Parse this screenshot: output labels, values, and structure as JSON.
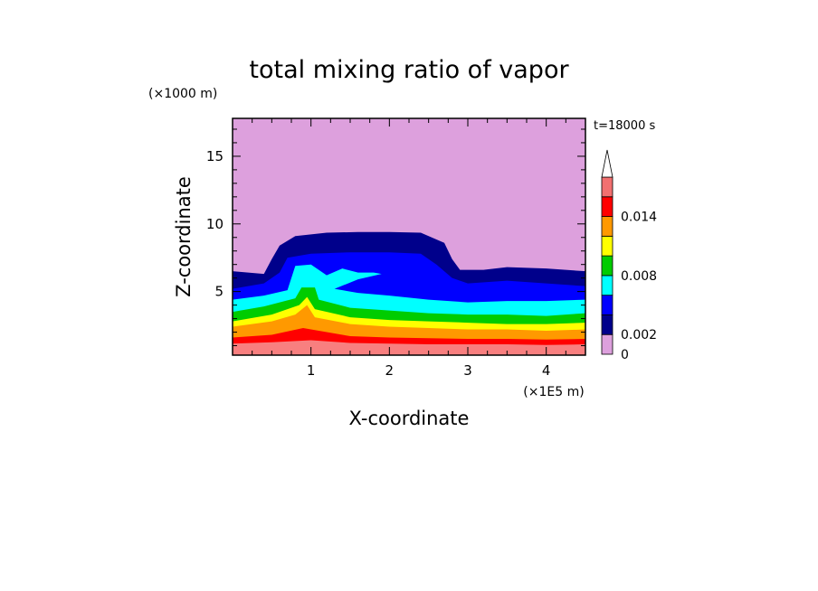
{
  "chart_data": {
    "type": "heatmap",
    "title": "total mixing ratio of vapor",
    "xlabel": "X-coordinate",
    "ylabel": "Z-coordinate",
    "x_unit": "(×1E5 m)",
    "y_unit": "(×1000 m)",
    "time_label": "t=18000 s",
    "xlim": [
      0,
      4.5
    ],
    "ylim": [
      0.3,
      17.8
    ],
    "x_ticks": [
      1,
      2,
      3,
      4
    ],
    "y_ticks": [
      5,
      10,
      15
    ],
    "colorbar": {
      "levels": [
        0,
        0.002,
        0.004,
        0.006,
        0.008,
        0.01,
        0.012,
        0.014,
        0.016
      ],
      "tick_labels": [
        {
          "value": 0,
          "label": "0"
        },
        {
          "value": 0.002,
          "label": "0.002"
        },
        {
          "value": 0.008,
          "label": "0.008"
        },
        {
          "value": 0.014,
          "label": "0.014"
        }
      ],
      "colors": [
        "#dda0dd",
        "#00008b",
        "#0000ff",
        "#00ffff",
        "#00cc00",
        "#ffff00",
        "#ff9900",
        "#ff0000",
        "#f27070",
        "#f8b8b8"
      ],
      "extend": "max"
    },
    "bands": [
      {
        "level": 0.014,
        "color": "#f87f7f",
        "top": [
          [
            0,
            1.15
          ],
          [
            0.5,
            1.25
          ],
          [
            1.0,
            1.4
          ],
          [
            1.5,
            1.2
          ],
          [
            2.0,
            1.15
          ],
          [
            2.5,
            1.1
          ],
          [
            3.0,
            1.1
          ],
          [
            3.5,
            1.1
          ],
          [
            4.0,
            1.05
          ],
          [
            4.5,
            1.1
          ]
        ]
      },
      {
        "level": 0.012,
        "color": "#ff0000",
        "top": [
          [
            0,
            1.6
          ],
          [
            0.5,
            1.8
          ],
          [
            0.9,
            2.3
          ],
          [
            1.0,
            2.2
          ],
          [
            1.5,
            1.7
          ],
          [
            2.0,
            1.6
          ],
          [
            2.5,
            1.55
          ],
          [
            3.0,
            1.5
          ],
          [
            3.5,
            1.5
          ],
          [
            4.0,
            1.45
          ],
          [
            4.5,
            1.5
          ]
        ]
      },
      {
        "level": 0.01,
        "color": "#ff9900",
        "top": [
          [
            0,
            2.4
          ],
          [
            0.5,
            2.8
          ],
          [
            0.8,
            3.3
          ],
          [
            0.95,
            4.0
          ],
          [
            1.05,
            3.1
          ],
          [
            1.5,
            2.6
          ],
          [
            2.0,
            2.4
          ],
          [
            2.5,
            2.3
          ],
          [
            3.0,
            2.2
          ],
          [
            3.5,
            2.2
          ],
          [
            4.0,
            2.1
          ],
          [
            4.5,
            2.2
          ]
        ]
      },
      {
        "level": 0.008,
        "color": "#ffff00",
        "top": [
          [
            0,
            2.8
          ],
          [
            0.5,
            3.3
          ],
          [
            0.85,
            4.0
          ],
          [
            0.95,
            4.6
          ],
          [
            1.05,
            3.7
          ],
          [
            1.5,
            3.1
          ],
          [
            2.0,
            2.9
          ],
          [
            2.5,
            2.8
          ],
          [
            3.0,
            2.7
          ],
          [
            3.5,
            2.6
          ],
          [
            4.0,
            2.6
          ],
          [
            4.5,
            2.7
          ]
        ]
      },
      {
        "level": 0.006,
        "color": "#00cc00",
        "top": [
          [
            0,
            3.5
          ],
          [
            0.4,
            3.9
          ],
          [
            0.8,
            4.5
          ],
          [
            0.88,
            5.3
          ],
          [
            1.05,
            5.3
          ],
          [
            1.1,
            4.4
          ],
          [
            1.5,
            3.8
          ],
          [
            2.0,
            3.6
          ],
          [
            2.5,
            3.4
          ],
          [
            3.0,
            3.3
          ],
          [
            3.5,
            3.3
          ],
          [
            4.0,
            3.2
          ],
          [
            4.5,
            3.4
          ]
        ]
      },
      {
        "level": 0.004,
        "color": "#00ffff",
        "top": [
          [
            0,
            4.4
          ],
          [
            0.4,
            4.7
          ],
          [
            0.7,
            5.1
          ],
          [
            0.8,
            6.9
          ],
          [
            1.0,
            7.0
          ],
          [
            1.2,
            6.2
          ],
          [
            1.4,
            6.7
          ],
          [
            1.6,
            6.4
          ],
          [
            1.8,
            6.4
          ],
          [
            1.9,
            6.3
          ],
          [
            1.6,
            5.9
          ],
          [
            1.3,
            5.2
          ],
          [
            1.6,
            4.9
          ],
          [
            2.0,
            4.7
          ],
          [
            2.5,
            4.4
          ],
          [
            3.0,
            4.2
          ],
          [
            3.5,
            4.3
          ],
          [
            4.0,
            4.3
          ],
          [
            4.5,
            4.4
          ]
        ]
      },
      {
        "level": 0.002,
        "color": "#0000ff",
        "top": [
          [
            0,
            5.2
          ],
          [
            0.4,
            5.6
          ],
          [
            0.6,
            6.4
          ],
          [
            0.7,
            7.5
          ],
          [
            1.0,
            7.8
          ],
          [
            1.5,
            7.9
          ],
          [
            2.0,
            7.9
          ],
          [
            2.4,
            7.8
          ],
          [
            2.6,
            7.0
          ],
          [
            2.8,
            6.0
          ],
          [
            3.0,
            5.6
          ],
          [
            3.5,
            5.8
          ],
          [
            4.0,
            5.6
          ],
          [
            4.5,
            5.4
          ]
        ]
      },
      {
        "level": 0.001,
        "color": "#00008b",
        "top": [
          [
            0,
            6.5
          ],
          [
            0.4,
            6.3
          ],
          [
            0.5,
            7.4
          ],
          [
            0.6,
            8.4
          ],
          [
            0.8,
            9.1
          ],
          [
            1.2,
            9.35
          ],
          [
            1.6,
            9.4
          ],
          [
            2.0,
            9.4
          ],
          [
            2.4,
            9.35
          ],
          [
            2.7,
            8.6
          ],
          [
            2.8,
            7.4
          ],
          [
            2.9,
            6.6
          ],
          [
            3.2,
            6.6
          ],
          [
            3.5,
            6.8
          ],
          [
            4.0,
            6.7
          ],
          [
            4.5,
            6.5
          ]
        ]
      }
    ]
  }
}
